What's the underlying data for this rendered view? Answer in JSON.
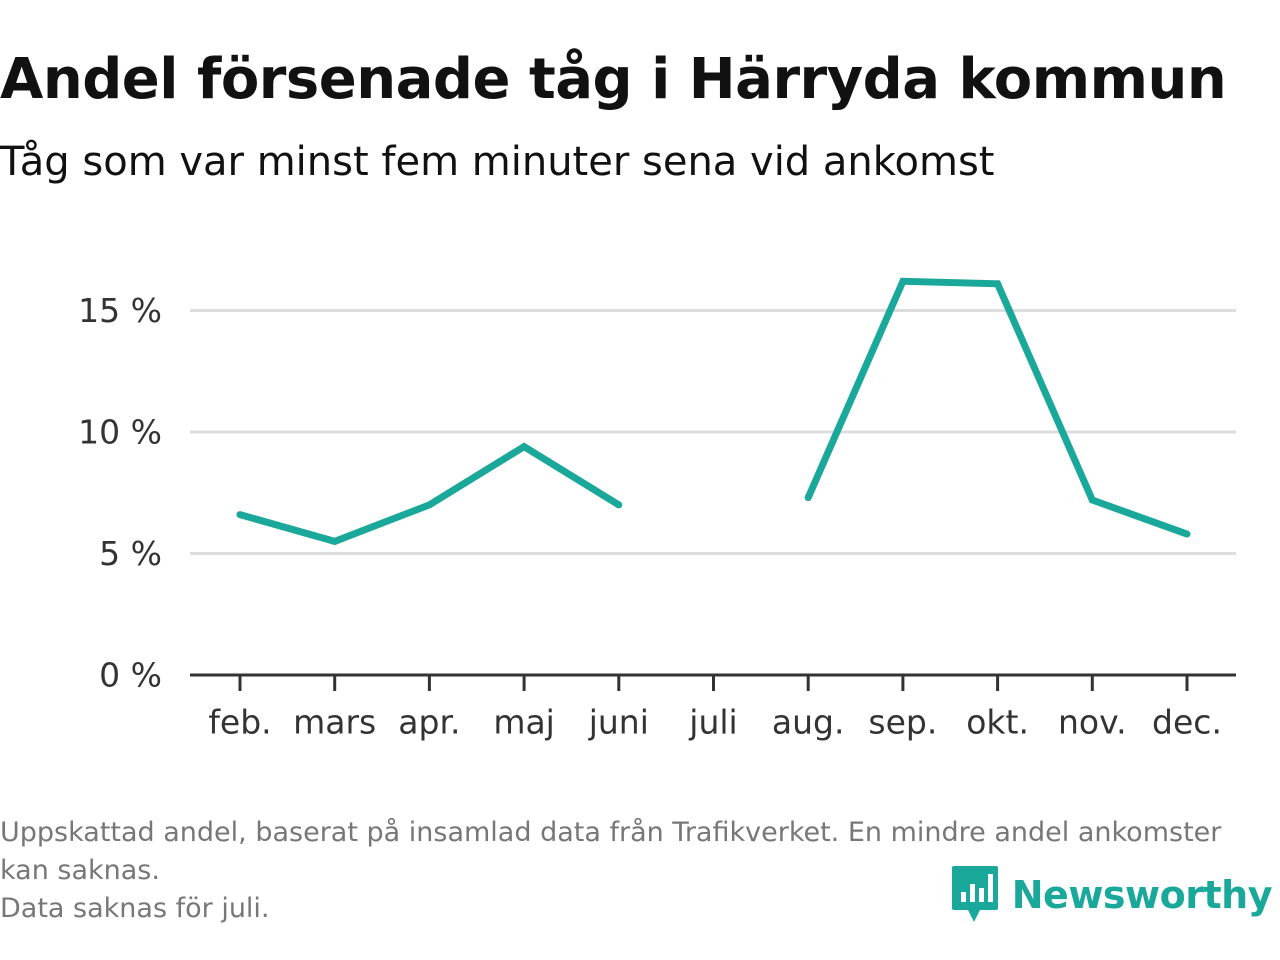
{
  "title": "Andel försenade tåg i Härryda kommun",
  "subtitle": "Tåg som var minst fem minuter sena vid ankomst",
  "chart_data": {
    "type": "line",
    "categories": [
      "feb.",
      "mars",
      "apr.",
      "maj",
      "juni",
      "juli",
      "aug.",
      "sep.",
      "okt.",
      "nov.",
      "dec."
    ],
    "series": [
      {
        "values": [
          6.6,
          5.5,
          7.0,
          9.4,
          7.0,
          null,
          7.3,
          16.2,
          16.1,
          7.2,
          5.8
        ]
      }
    ],
    "y_ticks": [
      0,
      5,
      10,
      15
    ],
    "y_tick_suffix": " %",
    "ylim": [
      0,
      17
    ],
    "grid": true,
    "line_color": "#1aa89a"
  },
  "footnote": {
    "lines": [
      "Uppskattad andel, baserat på insamlad data från Trafikverket. En mindre andel ankomster kan saknas.",
      "Data saknas för juli."
    ]
  },
  "brand": {
    "name": "Newsworthy",
    "icon": "newsworthy-logo-icon",
    "color": "#1aa89a"
  }
}
